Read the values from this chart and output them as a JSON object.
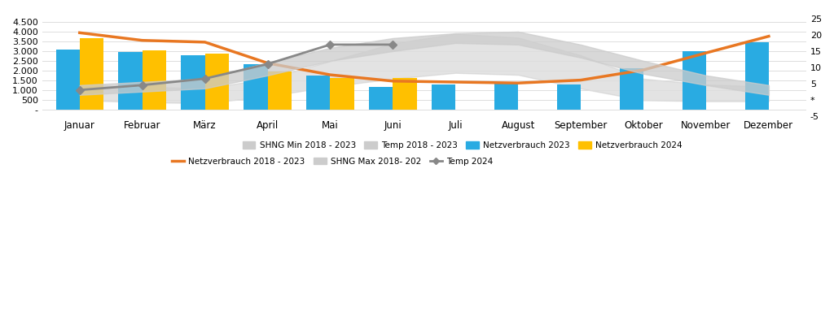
{
  "months": [
    "Januar",
    "Februar",
    "März",
    "April",
    "Mai",
    "Juni",
    "Juli",
    "August",
    "September",
    "Oktober",
    "November",
    "Dezember"
  ],
  "netzverbrauch_2023": [
    3100,
    2950,
    2800,
    2330,
    1780,
    1190,
    1310,
    1450,
    1290,
    2150,
    3000,
    3480
  ],
  "netzverbrauch_2024": [
    3680,
    3060,
    2870,
    1980,
    1620,
    1620,
    null,
    null,
    null,
    null,
    null,
    null
  ],
  "netzverbrauch_avg": [
    3950,
    3560,
    3470,
    2400,
    1800,
    1480,
    1430,
    1380,
    1530,
    2050,
    2920,
    3770
  ],
  "shng_min": [
    500,
    400,
    350,
    700,
    1200,
    1600,
    1900,
    1800,
    1100,
    500,
    450,
    450
  ],
  "shng_max": [
    1300,
    1200,
    1100,
    1600,
    2500,
    3400,
    3900,
    3700,
    2800,
    1600,
    1300,
    1200
  ],
  "temp_2018_2023_low": [
    1.5,
    2.5,
    3.5,
    7.5,
    12.0,
    15.0,
    17.5,
    17.0,
    13.0,
    8.0,
    4.5,
    1.5
  ],
  "temp_2018_2023_high": [
    4.5,
    5.5,
    6.5,
    11.5,
    16.0,
    19.0,
    20.5,
    21.0,
    17.0,
    12.0,
    7.5,
    4.5
  ],
  "temp_2024": [
    3.0,
    4.5,
    6.5,
    11.0,
    17.0,
    17.0,
    null,
    null,
    null,
    null,
    null,
    null
  ],
  "bar_color_2023": "#29ABE2",
  "bar_color_2024": "#FFC000",
  "line_color_avg": "#E87722",
  "shng_band_color": "#CCCCCC",
  "temp_band_color": "#CCCCCC",
  "left_ylim": [
    -300,
    5000
  ],
  "left_yticks": [
    0,
    500,
    1000,
    1500,
    2000,
    2500,
    3000,
    3500,
    4000,
    4500
  ],
  "left_yticklabels": [
    "-",
    "500",
    "1.000",
    "1.500",
    "2.000",
    "2.500",
    "3.000",
    "3.500",
    "4.000",
    "4.500"
  ],
  "right_ylim": [
    -5,
    27
  ],
  "right_yticks": [
    -5,
    0,
    5,
    10,
    15,
    20,
    25
  ],
  "right_yticklabels": [
    "-5",
    "*",
    "5",
    "10",
    "15",
    "20",
    "25"
  ],
  "background_color": "#FFFFFF",
  "grid_color": "#DDDDDD"
}
